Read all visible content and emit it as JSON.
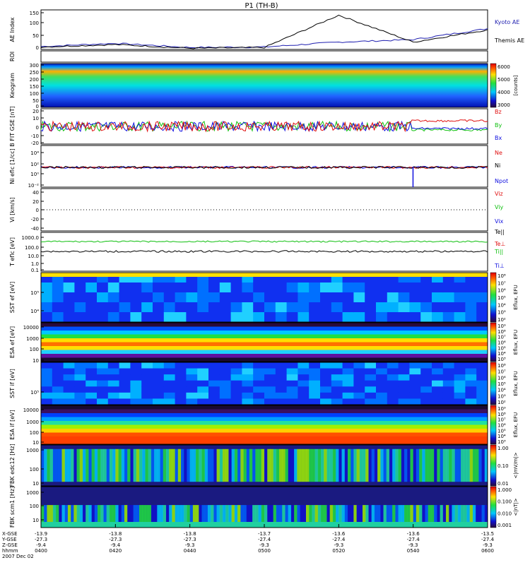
{
  "title": "P1 (TH-B)",
  "colors": {
    "kyoto": "#1f1fb0",
    "themis": "#000000",
    "red": "#e01010",
    "green": "#10c010",
    "blue": "#1010e0",
    "black": "#000000"
  },
  "panels": [
    {
      "id": "ae",
      "label": "AE Index",
      "legend": [
        {
          "text": "Kyoto AE",
          "color": "#1f1fb0"
        },
        {
          "text": "Themis AE",
          "color": "#000000"
        }
      ],
      "ticks": [
        "150",
        "100",
        "50",
        "0"
      ]
    },
    {
      "id": "roi",
      "label": "ROI",
      "legend": [],
      "ticks": []
    },
    {
      "id": "keogram",
      "label": "Keogram",
      "legend": [],
      "ticks": [
        "300",
        "250",
        "200",
        "150",
        "100",
        "50",
        "0"
      ],
      "colorbar": {
        "ticks": [
          "6000",
          "5000",
          "4000",
          "3000"
        ],
        "unit": "[counts]"
      }
    },
    {
      "id": "bfit",
      "label": "B FIT",
      "sublabel": "GSE",
      "unit": "[nT]",
      "legend": [
        {
          "text": "Bz",
          "color": "#e01010"
        },
        {
          "text": "By",
          "color": "#10c010"
        },
        {
          "text": "Bx",
          "color": "#1010e0"
        }
      ],
      "ticks": [
        "20",
        "10",
        "0",
        "-10",
        "-20"
      ]
    },
    {
      "id": "ni",
      "label": "Ni",
      "sublabel": "eflc",
      "unit": "[1/cc]",
      "legend": [
        {
          "text": "Ne",
          "color": "#e01010"
        },
        {
          "text": "Ni",
          "color": "#000000"
        },
        {
          "text": "Npot",
          "color": "#1010e0"
        }
      ],
      "ticks": [
        "10⁴",
        "10²",
        "10⁰",
        "10⁻²"
      ]
    },
    {
      "id": "vi",
      "label": "Vi",
      "unit": "[km/s]",
      "legend": [
        {
          "text": "Viz",
          "color": "#e01010"
        },
        {
          "text": "Viy",
          "color": "#10c010"
        },
        {
          "text": "Vix",
          "color": "#1010e0"
        }
      ],
      "ticks": [
        "40",
        "20",
        "0",
        "-20",
        "-40"
      ]
    },
    {
      "id": "t",
      "label": "T",
      "sublabel": "eflc",
      "unit": "[eV]",
      "legend": [
        {
          "text": "Te||",
          "color": "#000000"
        },
        {
          "text": "Te⊥",
          "color": "#e01010"
        },
        {
          "text": "Ti||",
          "color": "#10c010"
        },
        {
          "text": "Ti⊥",
          "color": "#1010e0"
        }
      ],
      "ticks": [
        "1000.0",
        "100.0",
        "10.0",
        "1.0",
        "0.1"
      ]
    },
    {
      "id": "sst_e",
      "label": "SST",
      "sublabel": "ef",
      "unit": "[eV]",
      "legend": [],
      "ticks": [
        "10⁵",
        "10⁴"
      ],
      "colorbar": {
        "ticks": [
          "10⁸",
          "10⁷",
          "10⁶",
          "10⁵",
          "10⁴",
          "10³",
          "10²"
        ],
        "unit": "Eflux, EFU"
      }
    },
    {
      "id": "esa_e",
      "label": "ESA",
      "sublabel": "ef",
      "unit": "[eV]",
      "legend": [],
      "ticks": [
        "10000",
        "1000",
        "100",
        "10"
      ],
      "colorbar": {
        "ticks": [
          "10⁹",
          "10⁸",
          "10⁷",
          "10⁶",
          "10⁵",
          "10⁴",
          "10³"
        ],
        "unit": "Eflux, EFU"
      }
    },
    {
      "id": "sst_i",
      "label": "SST",
      "sublabel": "if",
      "unit": "[eV]",
      "legend": [],
      "ticks": [
        "10⁵"
      ],
      "colorbar": {
        "ticks": [
          "10⁸",
          "10⁷",
          "10⁶",
          "10⁵",
          "10⁴",
          "10³",
          "10²"
        ],
        "unit": "Eflux, EFU"
      }
    },
    {
      "id": "esa_i",
      "label": "ESA",
      "sublabel": "if",
      "unit": "[eV]",
      "legend": [],
      "ticks": [
        "10000",
        "1000",
        "100",
        "10"
      ],
      "colorbar": {
        "ticks": [
          "10⁹",
          "10⁸",
          "10⁷",
          "10⁶",
          "10⁵",
          "10⁴",
          "10³"
        ],
        "unit": "Eflux, EFU"
      }
    },
    {
      "id": "fbk_e",
      "label": "FBK",
      "sublabel": "edc12",
      "unit": "[Hz]",
      "legend": [],
      "ticks": [
        "1000",
        "100",
        "10"
      ],
      "colorbar": {
        "ticks": [
          "1.00",
          "0.10",
          "0.01"
        ],
        "unit": "<|mV/m|>"
      }
    },
    {
      "id": "fbk_b",
      "label": "FBK",
      "sublabel": "scm1",
      "unit": "[Hz]",
      "legend": [],
      "ticks": [
        "1000",
        "100",
        "10"
      ],
      "colorbar": {
        "ticks": [
          "1.000",
          "0.100",
          "0.010",
          "0.001"
        ],
        "unit": "<|nT|>"
      }
    }
  ],
  "xaxis": {
    "row_labels": [
      "X-GSE",
      "Y-GSE",
      "Z-GSE",
      "hhmm",
      "2007 Dec 02"
    ],
    "ticks": [
      {
        "x": "-13.9",
        "y": "-27.3",
        "z": "-9.4",
        "time": "0400"
      },
      {
        "x": "-13.8",
        "y": "-27.3",
        "z": "-9.4",
        "time": "0420"
      },
      {
        "x": "-13.8",
        "y": "-27.3",
        "z": "-9.3",
        "time": "0440"
      },
      {
        "x": "-13.7",
        "y": "-27.4",
        "z": "-9.3",
        "time": "0500"
      },
      {
        "x": "-13.6",
        "y": "-27.4",
        "z": "-9.3",
        "time": "0520"
      },
      {
        "x": "-13.6",
        "y": "-27.4",
        "z": "-9.3",
        "time": "0540"
      },
      {
        "x": "-13.5",
        "y": "-27.4",
        "z": "-9.3",
        "time": "0600"
      }
    ]
  },
  "chart_data": {
    "type": "line",
    "title": "P1 (TH-B)",
    "x": [
      "0400",
      "0420",
      "0440",
      "0500",
      "0520",
      "0540",
      "0600"
    ],
    "series": [
      {
        "name": "Kyoto AE",
        "values": [
          12,
          25,
          8,
          10,
          30,
          40,
          85
        ]
      },
      {
        "name": "Themis AE",
        "values": [
          10,
          20,
          5,
          8,
          140,
          30,
          80
        ]
      }
    ],
    "ylabel": "AE Index",
    "ylim": [
      0,
      150
    ]
  }
}
